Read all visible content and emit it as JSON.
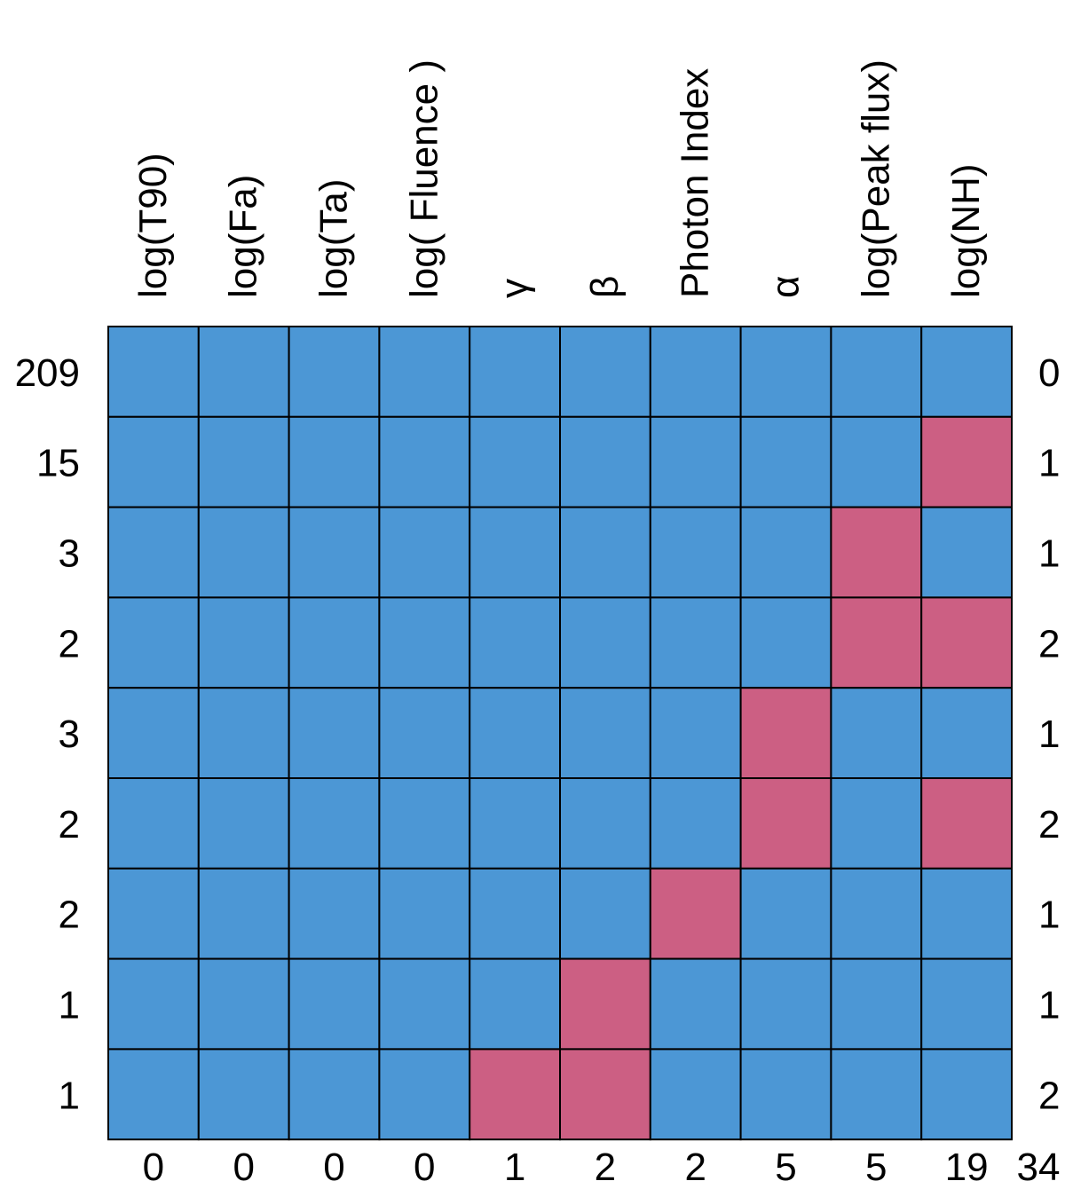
{
  "chart_data": {
    "type": "heatmap",
    "columns": [
      "log(T90)",
      "log(Fa)",
      "log(Ta)",
      "log( Fluence )",
      "γ",
      "β",
      "Photon Index",
      "α",
      "log(Peak flux)",
      "log(NH)"
    ],
    "rows": [
      {
        "count": "209",
        "missing": "0",
        "cells": [
          0,
          0,
          0,
          0,
          0,
          0,
          0,
          0,
          0,
          0
        ]
      },
      {
        "count": "15",
        "missing": "1",
        "cells": [
          0,
          0,
          0,
          0,
          0,
          0,
          0,
          0,
          0,
          1
        ]
      },
      {
        "count": "3",
        "missing": "1",
        "cells": [
          0,
          0,
          0,
          0,
          0,
          0,
          0,
          0,
          1,
          0
        ]
      },
      {
        "count": "2",
        "missing": "2",
        "cells": [
          0,
          0,
          0,
          0,
          0,
          0,
          0,
          0,
          1,
          1
        ]
      },
      {
        "count": "3",
        "missing": "1",
        "cells": [
          0,
          0,
          0,
          0,
          0,
          0,
          0,
          1,
          0,
          0
        ]
      },
      {
        "count": "2",
        "missing": "2",
        "cells": [
          0,
          0,
          0,
          0,
          0,
          0,
          0,
          1,
          0,
          1
        ]
      },
      {
        "count": "2",
        "missing": "1",
        "cells": [
          0,
          0,
          0,
          0,
          0,
          0,
          1,
          0,
          0,
          0
        ]
      },
      {
        "count": "1",
        "missing": "1",
        "cells": [
          0,
          0,
          0,
          0,
          0,
          1,
          0,
          0,
          0,
          0
        ]
      },
      {
        "count": "1",
        "missing": "2",
        "cells": [
          0,
          0,
          0,
          0,
          1,
          1,
          0,
          0,
          0,
          0
        ]
      }
    ],
    "column_totals": [
      "0",
      "0",
      "0",
      "0",
      "1",
      "2",
      "2",
      "5",
      "5",
      "19"
    ],
    "grand_total": "34",
    "colors": {
      "observed": "#4c97d5",
      "missing": "#cc5f83",
      "border": "#000000"
    }
  }
}
